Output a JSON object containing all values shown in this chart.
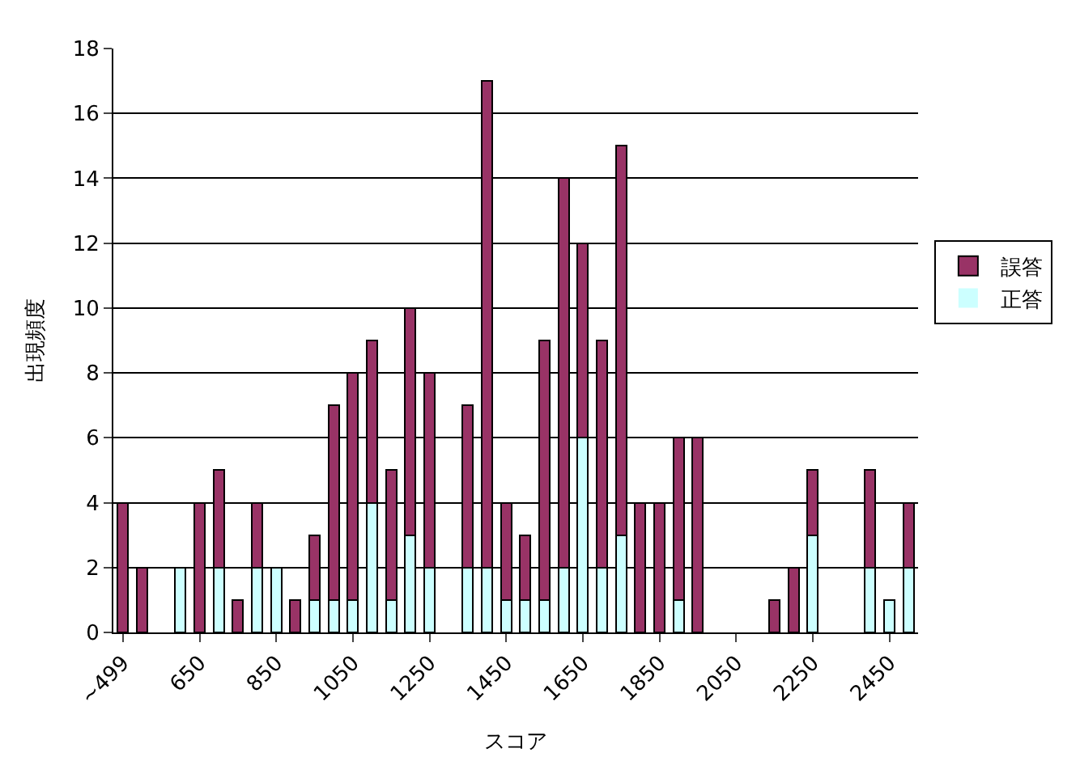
{
  "chart_data": {
    "type": "bar",
    "stacked": true,
    "xlabel": "スコア",
    "ylabel": "出現頻度",
    "categories": [
      "~499",
      null,
      null,
      null,
      "650",
      null,
      null,
      null,
      "850",
      null,
      null,
      null,
      "1050",
      null,
      null,
      null,
      "1250",
      null,
      null,
      null,
      "1450",
      null,
      null,
      null,
      "1650",
      null,
      null,
      null,
      "1850",
      null,
      null,
      null,
      "2050",
      null,
      null,
      null,
      "2250",
      null,
      null,
      null,
      "2450",
      null
    ],
    "series": [
      {
        "name": "正答",
        "color": "#ccffff",
        "values": [
          0,
          0,
          0,
          2,
          0,
          2,
          0,
          2,
          2,
          0,
          1,
          1,
          1,
          4,
          1,
          3,
          2,
          0,
          2,
          2,
          1,
          1,
          1,
          2,
          6,
          2,
          3,
          0,
          0,
          1,
          0,
          0,
          0,
          0,
          0,
          0,
          3,
          0,
          0,
          2,
          1,
          2
        ]
      },
      {
        "name": "誤答",
        "color": "#993366",
        "values": [
          4,
          2,
          0,
          0,
          4,
          3,
          1,
          2,
          0,
          1,
          2,
          6,
          7,
          5,
          4,
          7,
          6,
          0,
          5,
          15,
          3,
          2,
          8,
          12,
          6,
          7,
          12,
          4,
          4,
          5,
          6,
          0,
          0,
          0,
          1,
          2,
          2,
          0,
          0,
          3,
          0,
          2
        ]
      }
    ],
    "ylim": [
      0,
      18
    ],
    "yticks": [
      0,
      2,
      4,
      6,
      8,
      10,
      12,
      14,
      16,
      18
    ],
    "grid": "y",
    "legend": "right"
  }
}
